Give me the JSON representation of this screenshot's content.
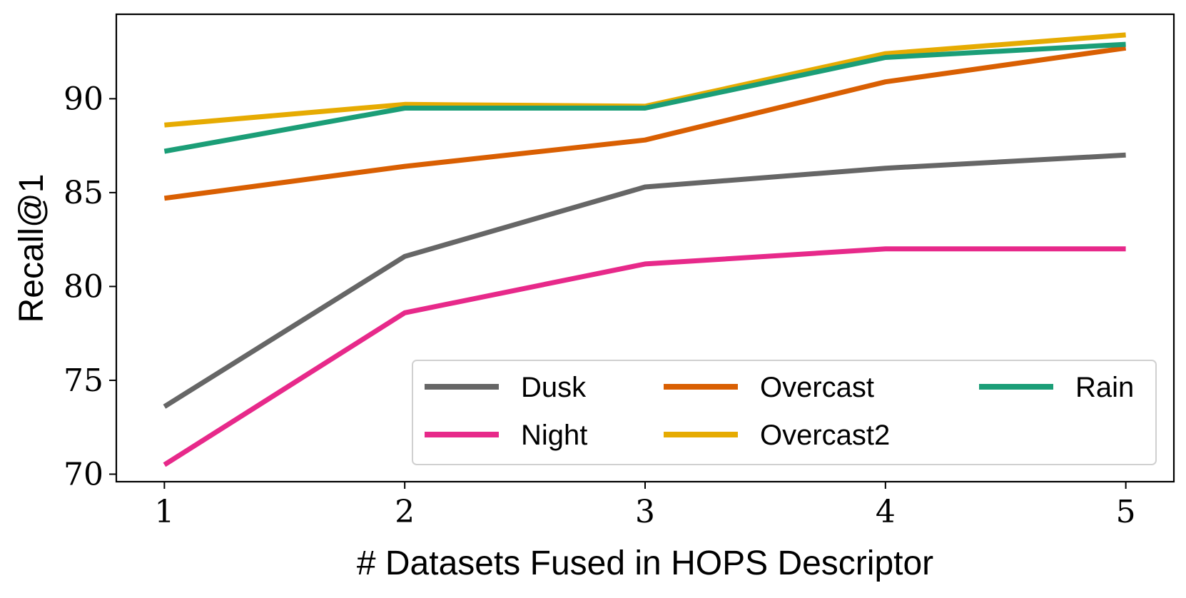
{
  "chart_data": {
    "type": "line",
    "title": "",
    "xlabel": "# Datasets Fused in HOPS Descriptor",
    "ylabel": "Recall@1",
    "x": [
      1,
      2,
      3,
      4,
      5
    ],
    "x_ticks": [
      "1",
      "2",
      "3",
      "4",
      "5"
    ],
    "y_ticks": [
      "70",
      "75",
      "80",
      "85",
      "90"
    ],
    "xlim": [
      0.8,
      5.2
    ],
    "ylim": [
      69.6,
      94.5
    ],
    "grid": false,
    "legend_position": "lower-right",
    "series": [
      {
        "name": "Dusk",
        "color": "#666666",
        "values": [
          73.6,
          81.6,
          85.3,
          86.3,
          87.0
        ]
      },
      {
        "name": "Night",
        "color": "#e7298a",
        "values": [
          70.5,
          78.6,
          81.2,
          82.0,
          82.0
        ]
      },
      {
        "name": "Overcast",
        "color": "#d95f02",
        "values": [
          84.7,
          86.4,
          87.8,
          90.9,
          92.7
        ]
      },
      {
        "name": "Overcast2",
        "color": "#e6ab02",
        "values": [
          88.6,
          89.7,
          89.6,
          92.4,
          93.4
        ]
      },
      {
        "name": "Rain",
        "color": "#1b9e77",
        "values": [
          87.2,
          89.5,
          89.5,
          92.2,
          92.9
        ]
      }
    ]
  }
}
